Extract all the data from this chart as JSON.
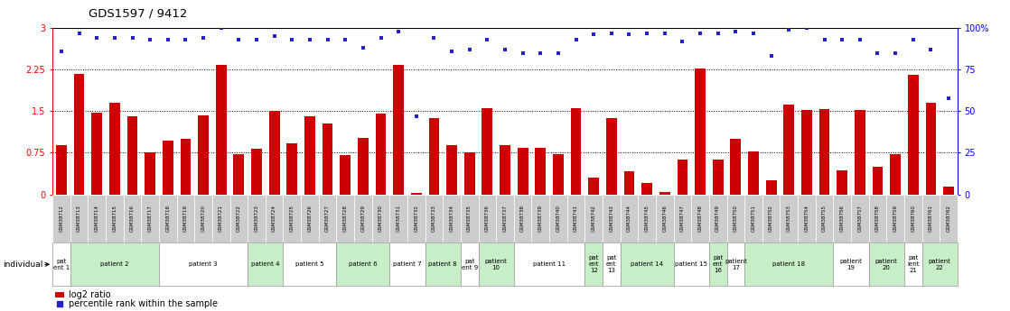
{
  "title": "GDS1597 / 9412",
  "samples": [
    "GSM38712",
    "GSM38713",
    "GSM38714",
    "GSM38715",
    "GSM38716",
    "GSM38717",
    "GSM38718",
    "GSM38719",
    "GSM38720",
    "GSM38721",
    "GSM38722",
    "GSM38723",
    "GSM38724",
    "GSM38725",
    "GSM38726",
    "GSM38727",
    "GSM38728",
    "GSM38729",
    "GSM38730",
    "GSM38731",
    "GSM38732",
    "GSM38733",
    "GSM38734",
    "GSM38735",
    "GSM38736",
    "GSM38737",
    "GSM38738",
    "GSM38739",
    "GSM38740",
    "GSM38741",
    "GSM38742",
    "GSM38743",
    "GSM38744",
    "GSM38745",
    "GSM38746",
    "GSM38747",
    "GSM38748",
    "GSM38749",
    "GSM38750",
    "GSM38751",
    "GSM38752",
    "GSM38753",
    "GSM38754",
    "GSM38755",
    "GSM38756",
    "GSM38757",
    "GSM38758",
    "GSM38759",
    "GSM38760",
    "GSM38761",
    "GSM38762"
  ],
  "log2_ratio": [
    0.88,
    2.18,
    1.47,
    1.65,
    1.41,
    0.75,
    0.97,
    1.0,
    1.43,
    2.33,
    0.72,
    0.82,
    1.5,
    0.92,
    1.41,
    1.27,
    0.71,
    1.02,
    1.46,
    2.33,
    0.03,
    1.38,
    0.88,
    0.75,
    1.55,
    0.88,
    0.84,
    0.84,
    0.72,
    1.56,
    0.3,
    1.37,
    0.42,
    0.21,
    0.05,
    0.63,
    2.27,
    0.63,
    1.0,
    0.78,
    0.25,
    1.62,
    1.52,
    1.53,
    0.43,
    1.52,
    0.5,
    0.72,
    2.15,
    1.65,
    0.14
  ],
  "percentile": [
    86,
    97,
    94,
    94,
    94,
    93,
    93,
    93,
    94,
    100,
    93,
    93,
    95,
    93,
    93,
    93,
    93,
    88,
    94,
    98,
    47,
    94,
    86,
    87,
    93,
    87,
    85,
    85,
    85,
    93,
    96,
    97,
    96,
    97,
    97,
    92,
    97,
    97,
    98,
    97,
    83,
    99,
    100,
    93,
    93,
    93,
    85,
    85,
    93,
    87,
    58
  ],
  "patients": [
    {
      "label": "pat\nent 1",
      "start": 0,
      "end": 0,
      "color": "#ffffff"
    },
    {
      "label": "patient 2",
      "start": 1,
      "end": 5,
      "color": "#c8eec8"
    },
    {
      "label": "patient 3",
      "start": 6,
      "end": 10,
      "color": "#ffffff"
    },
    {
      "label": "patient 4",
      "start": 11,
      "end": 12,
      "color": "#c8eec8"
    },
    {
      "label": "patient 5",
      "start": 13,
      "end": 15,
      "color": "#ffffff"
    },
    {
      "label": "patient 6",
      "start": 16,
      "end": 18,
      "color": "#c8eec8"
    },
    {
      "label": "patient 7",
      "start": 19,
      "end": 20,
      "color": "#ffffff"
    },
    {
      "label": "patient 8",
      "start": 21,
      "end": 22,
      "color": "#c8eec8"
    },
    {
      "label": "pat\nent 9",
      "start": 23,
      "end": 23,
      "color": "#ffffff"
    },
    {
      "label": "patient\n10",
      "start": 24,
      "end": 25,
      "color": "#c8eec8"
    },
    {
      "label": "patient 11",
      "start": 26,
      "end": 29,
      "color": "#ffffff"
    },
    {
      "label": "pat\nent\n12",
      "start": 30,
      "end": 30,
      "color": "#c8eec8"
    },
    {
      "label": "pat\nent\n13",
      "start": 31,
      "end": 31,
      "color": "#ffffff"
    },
    {
      "label": "patient 14",
      "start": 32,
      "end": 34,
      "color": "#c8eec8"
    },
    {
      "label": "patient 15",
      "start": 35,
      "end": 36,
      "color": "#ffffff"
    },
    {
      "label": "pat\nent\n16",
      "start": 37,
      "end": 37,
      "color": "#c8eec8"
    },
    {
      "label": "patient\n17",
      "start": 38,
      "end": 38,
      "color": "#ffffff"
    },
    {
      "label": "patient 18",
      "start": 39,
      "end": 43,
      "color": "#c8eec8"
    },
    {
      "label": "patient\n19",
      "start": 44,
      "end": 45,
      "color": "#ffffff"
    },
    {
      "label": "patient\n20",
      "start": 46,
      "end": 47,
      "color": "#c8eec8"
    },
    {
      "label": "pat\nient\n21",
      "start": 48,
      "end": 48,
      "color": "#ffffff"
    },
    {
      "label": "patient\n22",
      "start": 49,
      "end": 50,
      "color": "#c8eec8"
    }
  ],
  "bar_color": "#cc0000",
  "dot_color": "#2222cc",
  "left_yticks": [
    0,
    0.75,
    1.5,
    2.25,
    3.0
  ],
  "left_yticklabels": [
    "0",
    "0.75",
    "1.5",
    "2.25",
    "3"
  ],
  "right_yticks": [
    0,
    25,
    50,
    75,
    100
  ],
  "right_yticklabels": [
    "0",
    "25",
    "50",
    "75",
    "100%"
  ],
  "ylim_left": [
    0,
    3.0
  ],
  "ylim_right": [
    0,
    100
  ],
  "grid_lines": [
    0.75,
    1.5,
    2.25
  ]
}
